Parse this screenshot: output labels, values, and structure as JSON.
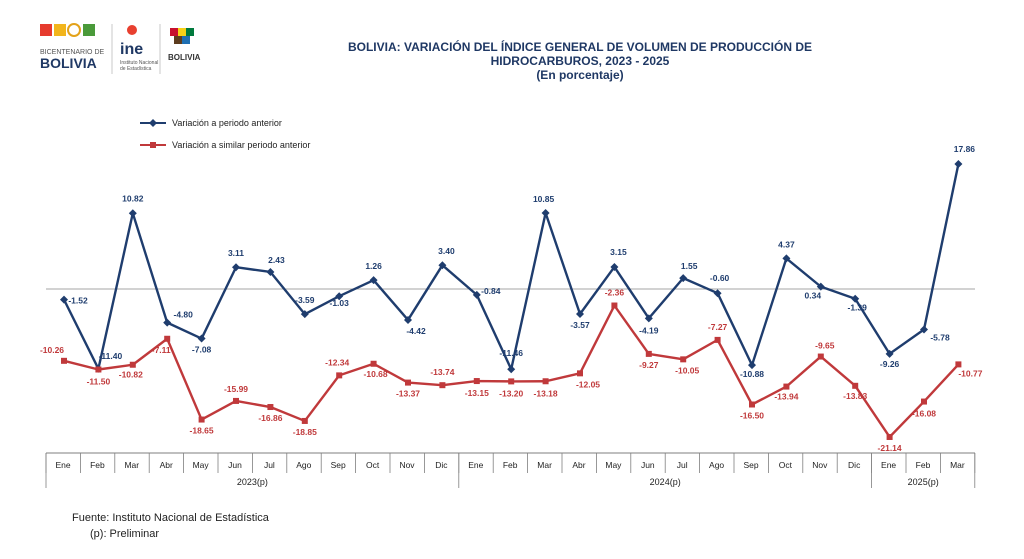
{
  "header": {
    "title_line1": "BOLIVIA: VARIACIÓN DEL ÍNDICE GENERAL DE VOLUMEN DE PRODUCCIÓN DE",
    "title_line2": "HIDROCARBUROS, 2023 - 2025",
    "subtitle": "(En porcentaje)"
  },
  "logos": {
    "bicentenario_top": "BICENTENARIO DE",
    "bicentenario_main": "BOLIVIA",
    "ine_label": "ine",
    "ine_caption_1": "Instituto Nacional",
    "ine_caption_2": "de Estadística",
    "estado_caption": "BOLIVIA"
  },
  "colors": {
    "series1": "#1f3d6e",
    "series2": "#c0393b",
    "axis": "#7f7f7f"
  },
  "chart_data": {
    "type": "line",
    "categories": [
      "Ene",
      "Feb",
      "Mar",
      "Abr",
      "May",
      "Jun",
      "Jul",
      "Ago",
      "Sep",
      "Oct",
      "Nov",
      "Dic",
      "Ene",
      "Feb",
      "Mar",
      "Abr",
      "May",
      "Jun",
      "Jul",
      "Ago",
      "Sep",
      "Oct",
      "Nov",
      "Dic",
      "Ene",
      "Feb",
      "Mar"
    ],
    "year_groups": [
      {
        "label": "2023(p)",
        "count": 12
      },
      {
        "label": "2024(p)",
        "count": 12
      },
      {
        "label": "2025(p)",
        "count": 3
      }
    ],
    "series": [
      {
        "name": "Variación a periodo anterior",
        "values": [
          -1.52,
          -11.4,
          10.82,
          -4.8,
          -7.08,
          3.11,
          2.43,
          -3.59,
          -1.03,
          1.26,
          -4.42,
          3.4,
          -0.84,
          -11.46,
          10.85,
          -3.57,
          3.15,
          -4.19,
          1.55,
          -0.6,
          -10.88,
          4.37,
          0.34,
          -1.39,
          -9.26,
          -5.78,
          17.86
        ],
        "labels": [
          "-1.52",
          "-11.40",
          "10.82",
          "-4.80",
          "-7.08",
          "3.11",
          "2.43",
          "-3.59",
          "-1.03",
          "1.26",
          "-4.42",
          "3.40",
          "-0.84",
          "-11.46",
          "10.85",
          "-3.57",
          "3.15",
          "-4.19",
          "1.55",
          "-0.60",
          "-10.88",
          "4.37",
          "0.34",
          "-1.39",
          "-9.26",
          "-5.78",
          "17.86"
        ]
      },
      {
        "name": "Variación a similar periodo anterior",
        "values": [
          -10.26,
          -11.5,
          -10.82,
          -7.11,
          -18.65,
          -15.99,
          -16.86,
          -18.85,
          -12.34,
          -10.68,
          -13.37,
          -13.74,
          -13.15,
          -13.2,
          -13.18,
          -12.05,
          -2.36,
          -9.27,
          -10.05,
          -7.27,
          -16.5,
          -13.94,
          -9.65,
          -13.83,
          -21.14,
          -16.08,
          -10.77
        ],
        "labels": [
          "-10.26",
          "-11.50",
          "-10.82",
          "-7.11",
          "-18.65",
          "-15.99",
          "-16.86",
          "-18.85",
          "-12.34",
          "-10.68",
          "-13.37",
          "-13.74",
          "-13.15",
          "-13.20",
          "-13.18",
          "-12.05",
          "-2.36",
          "-9.27",
          "-10.05",
          "-7.27",
          "-16.50",
          "-13.94",
          "-9.65",
          "-13.83",
          "-21.14",
          "-16.08",
          "-10.77"
        ]
      }
    ],
    "grid": false,
    "legend_position": "top-left"
  },
  "footer": {
    "source": "Fuente: Instituto Nacional de Estadística",
    "note": "(p): Preliminar"
  }
}
